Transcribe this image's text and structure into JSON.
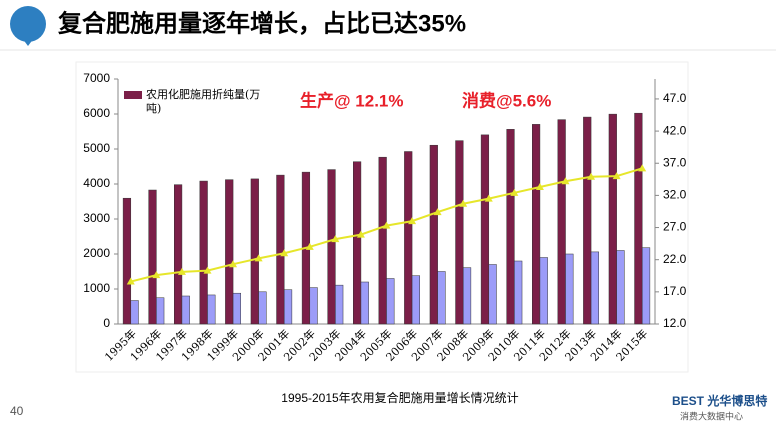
{
  "slide": {
    "title": "复合肥施用量逐年增长，占比已达35%",
    "page_number": "40",
    "logo": "BEST 光华博思特",
    "logo_sub": "消费大数据中心"
  },
  "chart_data": {
    "type": "bar",
    "caption": "1995-2015年农用复合肥施用量增长情况统计",
    "annotations": [
      "生产@ 12.1%",
      "消费@5.6%"
    ],
    "categories": [
      "1995年",
      "1996年",
      "1997年",
      "1998年",
      "1999年",
      "2000年",
      "2001年",
      "2002年",
      "2003年",
      "2004年",
      "2005年",
      "2006年",
      "2007年",
      "2008年",
      "2009年",
      "2010年",
      "2011年",
      "2012年",
      "2013年",
      "2014年",
      "2015年"
    ],
    "series": [
      {
        "name": "农用化肥施用折纯量(万吨)",
        "color": "#7b1f48",
        "values": [
          3594,
          3828,
          3981,
          4084,
          4124,
          4146,
          4254,
          4339,
          4412,
          4637,
          4766,
          4928,
          5108,
          5239,
          5404,
          5562,
          5704,
          5839,
          5912,
          5996,
          6023
        ]
      },
      {
        "color": "#9c9cf8",
        "values": [
          670,
          750,
          800,
          830,
          880,
          920,
          980,
          1040,
          1110,
          1200,
          1300,
          1380,
          1500,
          1610,
          1700,
          1800,
          1900,
          2000,
          2060,
          2100,
          2180
        ]
      },
      {
        "type": "line",
        "axis": "y2",
        "color": "#e6e62a",
        "values": [
          18.6,
          19.6,
          20.1,
          20.3,
          21.3,
          22.2,
          23.0,
          24.0,
          25.2,
          25.9,
          27.3,
          28.0,
          29.4,
          30.7,
          31.5,
          32.4,
          33.3,
          34.2,
          34.9,
          35.0,
          36.2
        ]
      }
    ],
    "ylim": [
      0,
      7000
    ],
    "yticks": [
      0,
      1000,
      2000,
      3000,
      4000,
      5000,
      6000,
      7000
    ],
    "y2lim": [
      12,
      50.1
    ],
    "y2ticks": [
      {
        "value": 12,
        "label": "12.0"
      },
      {
        "value": 17,
        "label": "17.0"
      },
      {
        "value": 22,
        "label": "22.0"
      },
      {
        "value": 27,
        "label": "27.0"
      },
      {
        "value": 32,
        "label": "32.0"
      },
      {
        "value": 37,
        "label": "37.0"
      },
      {
        "value": 42,
        "label": "42.0"
      },
      {
        "value": 47,
        "label": "47.0"
      }
    ]
  }
}
